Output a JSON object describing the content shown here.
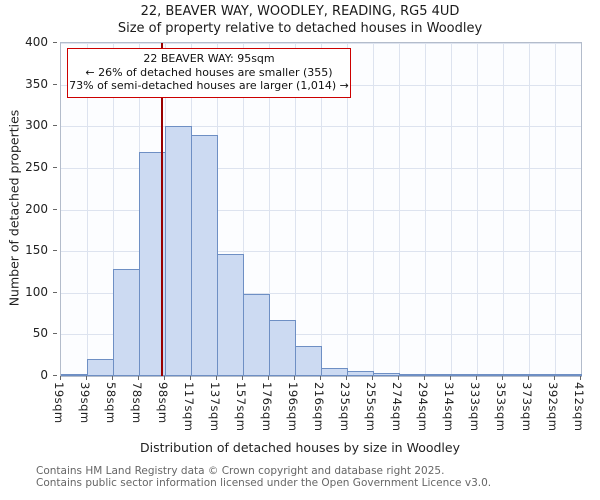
{
  "title": {
    "line1": "22, BEAVER WAY, WOODLEY, READING, RG5 4UD",
    "line2": "Size of property relative to detached houses in Woodley"
  },
  "chart_data": {
    "type": "bar",
    "subtype": "histogram",
    "title": "22, BEAVER WAY, WOODLEY, READING, RG5 4UD — Size of property relative to detached houses in Woodley",
    "xlabel": "Distribution of detached houses by size in Woodley",
    "ylabel": "Number of detached properties",
    "categories": [
      "19sqm",
      "39sqm",
      "58sqm",
      "78sqm",
      "98sqm",
      "117sqm",
      "137sqm",
      "157sqm",
      "176sqm",
      "196sqm",
      "216sqm",
      "235sqm",
      "255sqm",
      "274sqm",
      "294sqm",
      "314sqm",
      "333sqm",
      "353sqm",
      "373sqm",
      "392sqm",
      "412sqm"
    ],
    "values": [
      2,
      21,
      128,
      269,
      300,
      290,
      146,
      98,
      67,
      36,
      10,
      6,
      4,
      2,
      3,
      2,
      1,
      1,
      1,
      1
    ],
    "note": "values are bin counts between consecutive sqm tick edges",
    "ylim": [
      0,
      400
    ],
    "yticks": [
      0,
      50,
      100,
      150,
      200,
      250,
      300,
      350,
      400
    ],
    "grid": true,
    "legend": "none",
    "axis": {
      "min_sqm": 19,
      "max_sqm": 412
    },
    "marker": {
      "sqm": 95,
      "color": "#990000"
    },
    "annotation": {
      "lines": [
        "22 BEAVER WAY: 95sqm",
        "← 26% of detached houses are smaller (355)",
        "73% of semi-detached houses are larger (1,014) →"
      ],
      "border_color": "#cc0000"
    },
    "colors": {
      "bar_fill": "#ccdaf2",
      "bar_border": "#6e8fc4",
      "gridline": "#dde3ef",
      "plot_background": "#fcfdff"
    }
  },
  "footer": {
    "line1": "Contains HM Land Registry data © Crown copyright and database right 2025.",
    "line2": "Contains public sector information licensed under the Open Government Licence v3.0."
  }
}
